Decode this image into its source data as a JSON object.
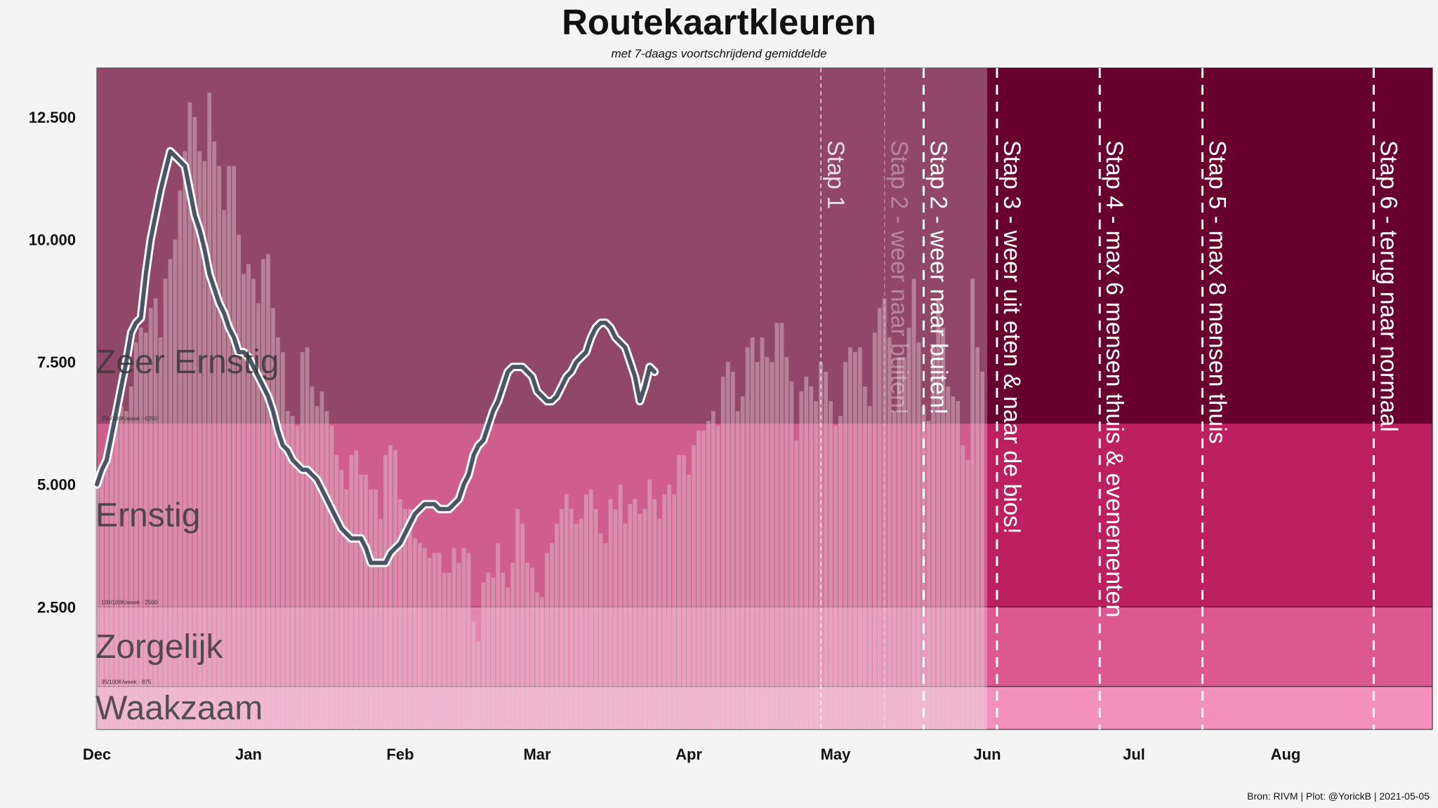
{
  "title": "Routekaartkleuren",
  "subtitle": "met 7-daags voortschrijdend gemiddelde",
  "caption": "Bron: RIVM | Plot: @YorickB  |  2021-05-05",
  "colors": {
    "zeer_ernstig": "#67002d",
    "ernstig": "#bd2060",
    "zorgelijk": "#dc5891",
    "waakzaam": "#f391bc",
    "bars": "#d9b3c2",
    "line": "#4b5563",
    "background": "#f4f4f4"
  },
  "chart_data": {
    "type": "bar",
    "x_axis": {
      "start": "2020-12-01",
      "end": "2021-08-31",
      "tick_labels": [
        "Dec",
        "Jan",
        "Feb",
        "Mar",
        "Apr",
        "May",
        "Jun",
        "Jul",
        "Aug"
      ],
      "tick_dates": [
        "2020-12-01",
        "2021-01-01",
        "2021-02-01",
        "2021-03-01",
        "2021-04-01",
        "2021-05-01",
        "2021-06-01",
        "2021-07-01",
        "2021-08-01"
      ]
    },
    "y_axis": {
      "ylim": [
        0,
        13500
      ],
      "ticks": [
        2500,
        5000,
        7500,
        10000,
        12500
      ],
      "tick_labels": [
        "2.500",
        "5.000",
        "7.500",
        "10.000",
        "12.500"
      ]
    },
    "zones": [
      {
        "name": "Waakzaam",
        "from": 0,
        "to": 875,
        "color": "#f391bc",
        "threshold_label": ""
      },
      {
        "name": "Zorgelijk",
        "from": 875,
        "to": 2500,
        "color": "#dc5891",
        "threshold_label": "35/100K/week - 875"
      },
      {
        "name": "Ernstig",
        "from": 2500,
        "to": 6250,
        "color": "#bd2060",
        "threshold_label": "100/100K/week - 2500"
      },
      {
        "name": "Zeer Ernstig",
        "from": 6250,
        "to": 13500,
        "color": "#67002d",
        "threshold_label": "250/100K/week - 6250"
      }
    ],
    "steps": [
      {
        "date": "2021-04-28",
        "label": "Stap 1",
        "style": "thin"
      },
      {
        "date": "2021-05-11",
        "label": "Stap 2 - weer naar buiten!",
        "style": "faded"
      },
      {
        "date": "2021-05-19",
        "label": "Stap 2 - weer naar buiten!",
        "style": "bold"
      },
      {
        "date": "2021-06-03",
        "label": "Stap 3 - weer uit eten & naar de bios!",
        "style": "bold"
      },
      {
        "date": "2021-06-24",
        "label": "Stap 4 - max 6 mensen thuis & evenementen",
        "style": "bold"
      },
      {
        "date": "2021-07-15",
        "label": "Stap 5 - max 8 mensen thuis",
        "style": "bold"
      },
      {
        "date": "2021-08-19",
        "label": "Stap 6 - terug naar normaal",
        "style": "bold"
      }
    ],
    "series": [
      {
        "name": "",
        "kind": "bar",
        "start": "2020-12-01",
        "values": [
          4950,
          5300,
          5600,
          6400,
          6600,
          6600,
          6500,
          7000,
          7900,
          8200,
          8100,
          8600,
          8800,
          8000,
          9200,
          9600,
          10000,
          11000,
          11800,
          12800,
          12500,
          11800,
          11600,
          13000,
          12000,
          11500,
          10600,
          11500,
          11500,
          10100,
          9300,
          9500,
          9200,
          8700,
          9600,
          9700,
          8600,
          8000,
          7700,
          6500,
          6400,
          6200,
          7700,
          7800,
          7000,
          6600,
          6900,
          6500,
          6200,
          5600,
          5300,
          4900,
          5600,
          5700,
          5200,
          5200,
          4900,
          4900,
          4300,
          5600,
          5800,
          5700,
          4700,
          4500,
          4500,
          3900,
          3800,
          3700,
          3500,
          3600,
          3600,
          3200,
          3200,
          3700,
          3400,
          3700,
          3600,
          2200,
          1800,
          3000,
          3200,
          3100,
          3800,
          3200,
          2900,
          3400,
          4500,
          4200,
          3400,
          3300,
          2800,
          2700,
          3600,
          3800,
          4200,
          4500,
          4800,
          4500,
          4200,
          4300,
          4800,
          4900,
          4500,
          4000,
          3800,
          4700,
          4500,
          5000,
          4200,
          4600,
          4700,
          4400,
          4500,
          5100,
          4700,
          4300,
          4800,
          5000,
          4800,
          5600,
          5600,
          5200,
          5800,
          6100,
          6100,
          6300,
          6500,
          6200,
          7200,
          7500,
          7300,
          6500,
          6800,
          7800,
          8000,
          7500,
          8000,
          7600,
          7500,
          8300,
          8300,
          7600,
          7100,
          5900,
          6900,
          7200,
          7000,
          6700,
          7500,
          7300,
          6700,
          6200,
          6400,
          7500,
          7800,
          7700,
          7800,
          7000,
          6600,
          8100,
          8600,
          8800,
          8000,
          6500,
          7600,
          7600,
          8200,
          9200,
          7900,
          6600,
          6300,
          7800,
          8800,
          8200,
          7000,
          6800,
          6700,
          5800,
          5500,
          9200,
          7800,
          7300
        ]
      },
      {
        "name": "",
        "kind": "line",
        "start": "2020-12-01",
        "values": [
          5000,
          5300,
          5500,
          6000,
          6500,
          7000,
          7500,
          8100,
          8300,
          8400,
          9300,
          10000,
          10500,
          11000,
          11400,
          11800,
          11700,
          11600,
          11500,
          11000,
          10500,
          10200,
          9800,
          9300,
          9000,
          8700,
          8500,
          8200,
          8000,
          7700,
          7700,
          7600,
          7400,
          7200,
          7000,
          6800,
          6500,
          6100,
          5800,
          5700,
          5500,
          5400,
          5300,
          5300,
          5200,
          5100,
          4900,
          4700,
          4500,
          4300,
          4100,
          4000,
          3900,
          3900,
          3900,
          3700,
          3400,
          3400,
          3400,
          3400,
          3600,
          3700,
          3800,
          4000,
          4200,
          4400,
          4500,
          4600,
          4600,
          4600,
          4500,
          4500,
          4500,
          4600,
          4700,
          5000,
          5200,
          5600,
          5800,
          5900,
          6200,
          6500,
          6700,
          7000,
          7300,
          7400,
          7400,
          7400,
          7300,
          7200,
          6900,
          6800,
          6700,
          6700,
          6800,
          7000,
          7200,
          7300,
          7500,
          7600,
          7700,
          8000,
          8200,
          8300,
          8300,
          8200,
          8000,
          7900,
          7800,
          7500,
          7200,
          6700,
          7000,
          7400,
          7300
        ]
      }
    ]
  }
}
